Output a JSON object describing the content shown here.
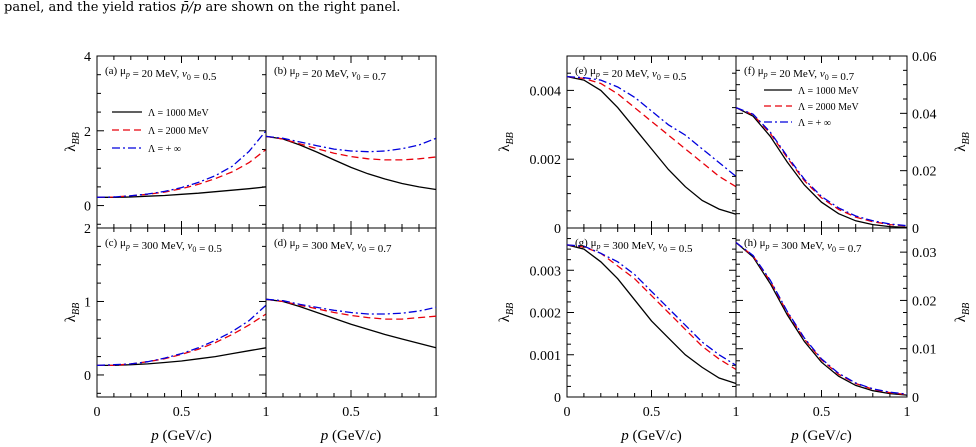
{
  "caption": {
    "text_pre": "panel, and the yield ratios ",
    "symbol": "p̄/p",
    "text_post": " are shown on the right panel."
  },
  "colors": {
    "lambda_1000": "#000000",
    "lambda_2000": "#e8000b",
    "lambda_inf": "#0000dd"
  },
  "legend": {
    "entries": [
      {
        "label": "Λ = 1000 MeV",
        "style": "solid",
        "color": "#000000"
      },
      {
        "label": "Λ = 2000 MeV",
        "style": "dash",
        "color": "#e8000b"
      },
      {
        "label": "Λ = + ∞",
        "style": "dashdot",
        "color": "#0000dd"
      }
    ]
  },
  "xaxis": {
    "label": "p (GeV/c)",
    "ticks": [
      "0",
      "0.5",
      "1"
    ],
    "range": [
      0,
      1
    ]
  },
  "chart_data": [
    {
      "type": "line",
      "panel": "a",
      "annotation": "(a) μp = 20 MeV, v0 = 0.5",
      "ylabel": "λBB",
      "ylim": [
        -0.6,
        4
      ],
      "yticks": [
        "0",
        "2",
        "4"
      ],
      "x": [
        0,
        0.1,
        0.2,
        0.3,
        0.4,
        0.5,
        0.6,
        0.7,
        0.8,
        0.9,
        1.0
      ],
      "series": [
        {
          "name": "Λ = 1000 MeV",
          "values": [
            0.22,
            0.22,
            0.23,
            0.25,
            0.27,
            0.3,
            0.33,
            0.37,
            0.41,
            0.45,
            0.5
          ]
        },
        {
          "name": "Λ = 2000 MeV",
          "values": [
            0.22,
            0.23,
            0.26,
            0.3,
            0.36,
            0.45,
            0.57,
            0.72,
            0.9,
            1.15,
            1.5
          ]
        },
        {
          "name": "Λ = + ∞",
          "values": [
            0.22,
            0.23,
            0.26,
            0.31,
            0.38,
            0.48,
            0.62,
            0.8,
            1.05,
            1.45,
            2.0
          ]
        }
      ]
    },
    {
      "type": "line",
      "panel": "b",
      "annotation": "(b) μp = 20 MeV, v0 = 0.7",
      "ylim": [
        -0.6,
        4
      ],
      "x": [
        0,
        0.1,
        0.2,
        0.3,
        0.4,
        0.5,
        0.6,
        0.7,
        0.8,
        0.9,
        1.0
      ],
      "series": [
        {
          "name": "Λ = 1000 MeV",
          "values": [
            1.85,
            1.78,
            1.62,
            1.43,
            1.22,
            1.02,
            0.85,
            0.71,
            0.59,
            0.5,
            0.43
          ]
        },
        {
          "name": "Λ = 2000 MeV",
          "values": [
            1.85,
            1.78,
            1.65,
            1.52,
            1.4,
            1.31,
            1.25,
            1.22,
            1.22,
            1.25,
            1.3
          ]
        },
        {
          "name": "Λ = + ∞",
          "values": [
            1.85,
            1.8,
            1.7,
            1.6,
            1.51,
            1.46,
            1.44,
            1.46,
            1.52,
            1.62,
            1.8
          ]
        }
      ]
    },
    {
      "type": "line",
      "panel": "c",
      "annotation": "(c) μp = 300 MeV, v0 = 0.5",
      "ylabel": "λBB",
      "ylim": [
        -0.3,
        2
      ],
      "yticks": [
        "0",
        "1",
        "2"
      ],
      "x": [
        0,
        0.1,
        0.2,
        0.3,
        0.4,
        0.5,
        0.6,
        0.7,
        0.8,
        0.9,
        1.0
      ],
      "series": [
        {
          "name": "Λ = 1000 MeV",
          "values": [
            0.13,
            0.13,
            0.14,
            0.15,
            0.17,
            0.19,
            0.22,
            0.25,
            0.29,
            0.33,
            0.37
          ]
        },
        {
          "name": "Λ = 2000 MeV",
          "values": [
            0.13,
            0.13,
            0.15,
            0.18,
            0.22,
            0.28,
            0.35,
            0.44,
            0.55,
            0.68,
            0.83
          ]
        },
        {
          "name": "Λ = + ∞",
          "values": [
            0.13,
            0.14,
            0.15,
            0.18,
            0.23,
            0.29,
            0.37,
            0.47,
            0.59,
            0.74,
            0.95
          ]
        }
      ]
    },
    {
      "type": "line",
      "panel": "d",
      "annotation": "(d) μp = 300 MeV, v0 = 0.7",
      "ylim": [
        -0.3,
        2
      ],
      "x": [
        0,
        0.1,
        0.2,
        0.3,
        0.4,
        0.5,
        0.6,
        0.7,
        0.8,
        0.9,
        1.0
      ],
      "series": [
        {
          "name": "Λ = 1000 MeV",
          "values": [
            1.03,
            1.0,
            0.93,
            0.85,
            0.77,
            0.69,
            0.62,
            0.55,
            0.49,
            0.43,
            0.37
          ]
        },
        {
          "name": "Λ = 2000 MeV",
          "values": [
            1.03,
            1.0,
            0.95,
            0.9,
            0.85,
            0.81,
            0.78,
            0.76,
            0.76,
            0.78,
            0.8
          ]
        },
        {
          "name": "Λ = + ∞",
          "values": [
            1.03,
            1.01,
            0.96,
            0.92,
            0.88,
            0.85,
            0.83,
            0.83,
            0.84,
            0.87,
            0.92
          ]
        }
      ]
    },
    {
      "type": "line",
      "panel": "e",
      "annotation": "(e) μp = 20 MeV, v0 = 0.5",
      "ylabel": "λBB",
      "ylim": [
        0,
        0.005
      ],
      "yticks": [
        "0",
        "0.002",
        "0.004"
      ],
      "x": [
        0,
        0.1,
        0.2,
        0.3,
        0.4,
        0.5,
        0.6,
        0.7,
        0.8,
        0.9,
        1.0
      ],
      "series": [
        {
          "name": "Λ = 1000 MeV",
          "values": [
            0.0044,
            0.0043,
            0.004,
            0.0035,
            0.0029,
            0.0023,
            0.0017,
            0.0012,
            0.0008,
            0.00055,
            0.0004
          ]
        },
        {
          "name": "Λ = 2000 MeV",
          "values": [
            0.0044,
            0.00435,
            0.0042,
            0.0039,
            0.0035,
            0.0031,
            0.0027,
            0.0023,
            0.0019,
            0.0015,
            0.0012
          ]
        },
        {
          "name": "Λ = + ∞",
          "values": [
            0.0044,
            0.00437,
            0.0043,
            0.0041,
            0.0038,
            0.0034,
            0.003,
            0.0027,
            0.0023,
            0.0019,
            0.0015
          ]
        }
      ]
    },
    {
      "type": "line",
      "panel": "f",
      "annotation": "(f) μp = 20 MeV, v0 = 0.7",
      "ylabel": "λBB",
      "ylim": [
        0,
        0.06
      ],
      "yticks": [
        "0",
        "0.02",
        "0.04",
        "0.06"
      ],
      "x": [
        0,
        0.1,
        0.2,
        0.3,
        0.4,
        0.5,
        0.6,
        0.7,
        0.8,
        0.9,
        1.0
      ],
      "series": [
        {
          "name": "Λ = 1000 MeV",
          "values": [
            0.042,
            0.039,
            0.032,
            0.023,
            0.015,
            0.009,
            0.005,
            0.0025,
            0.0012,
            0.0005,
            0.0002
          ]
        },
        {
          "name": "Λ = 2000 MeV",
          "values": [
            0.042,
            0.0395,
            0.033,
            0.0245,
            0.0165,
            0.0105,
            0.0065,
            0.0038,
            0.0022,
            0.0012,
            0.0007
          ]
        },
        {
          "name": "Λ = + ∞",
          "values": [
            0.042,
            0.0397,
            0.0335,
            0.025,
            0.017,
            0.011,
            0.007,
            0.0042,
            0.0025,
            0.0014,
            0.0008
          ]
        }
      ]
    },
    {
      "type": "line",
      "panel": "g",
      "annotation": "(g) μp = 300 MeV, v0 = 0.5",
      "ylabel": "λBB",
      "ylim": [
        0,
        0.004
      ],
      "yticks": [
        "0",
        "0.001",
        "0.002",
        "0.003"
      ],
      "x": [
        0,
        0.1,
        0.2,
        0.3,
        0.4,
        0.5,
        0.6,
        0.7,
        0.8,
        0.9,
        1.0
      ],
      "series": [
        {
          "name": "Λ = 1000 MeV",
          "values": [
            0.0036,
            0.0035,
            0.0032,
            0.0028,
            0.0023,
            0.0018,
            0.0014,
            0.001,
            0.0007,
            0.00045,
            0.00032
          ]
        },
        {
          "name": "Λ = 2000 MeV",
          "values": [
            0.0036,
            0.00355,
            0.0034,
            0.0031,
            0.0028,
            0.0024,
            0.002,
            0.0016,
            0.0012,
            0.0009,
            0.00065
          ]
        },
        {
          "name": "Λ = + ∞",
          "values": [
            0.0036,
            0.00357,
            0.0034,
            0.0032,
            0.0029,
            0.0025,
            0.0021,
            0.0017,
            0.0013,
            0.001,
            0.00075
          ]
        }
      ]
    },
    {
      "type": "line",
      "panel": "h",
      "annotation": "(h) μp = 300 MeV, v0 = 0.7",
      "ylabel": "λBB",
      "ylim": [
        0,
        0.035
      ],
      "yticks": [
        "0",
        "0.01",
        "0.02",
        "0.03"
      ],
      "x": [
        0,
        0.1,
        0.2,
        0.3,
        0.4,
        0.5,
        0.6,
        0.7,
        0.8,
        0.9,
        1.0
      ],
      "series": [
        {
          "name": "Λ = 1000 MeV",
          "values": [
            0.032,
            0.029,
            0.0235,
            0.017,
            0.0115,
            0.0072,
            0.0043,
            0.0024,
            0.0013,
            0.0007,
            0.0004
          ]
        },
        {
          "name": "Λ = 2000 MeV",
          "values": [
            0.032,
            0.0292,
            0.024,
            0.0175,
            0.012,
            0.0077,
            0.0047,
            0.0028,
            0.0016,
            0.0009,
            0.0005
          ]
        },
        {
          "name": "Λ = + ∞",
          "values": [
            0.032,
            0.0293,
            0.0242,
            0.0177,
            0.0122,
            0.0079,
            0.0049,
            0.0029,
            0.0017,
            0.001,
            0.0006
          ]
        }
      ]
    }
  ]
}
